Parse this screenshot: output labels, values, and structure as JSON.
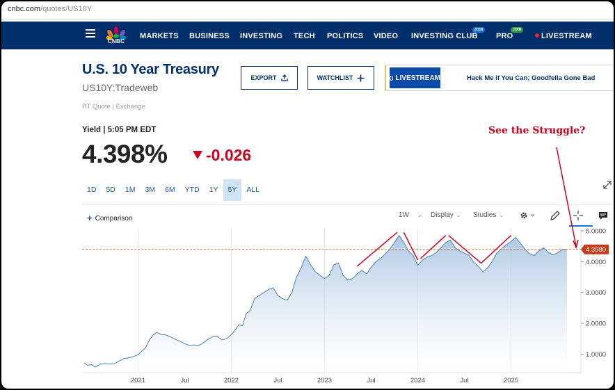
{
  "browser": {
    "url_host": "cnbc.com",
    "url_path": "/quotes/US10Y"
  },
  "nav": {
    "logo_text": "CNBC",
    "items": [
      "MARKETS",
      "BUSINESS",
      "INVESTING",
      "TECH",
      "POLITICS",
      "VIDEO",
      "INVESTING CLUB",
      "PRO",
      "LIVESTREAM"
    ],
    "join_badge": "JOIN",
    "colors": {
      "background": "#002f6c",
      "club_badge": "#1a73d8",
      "pro_badge": "#2a9d3a",
      "live_dot": "#e22222"
    }
  },
  "quote": {
    "title": "U.S. 10 Year Treasury",
    "symbol": "US10Y:Tradeweb",
    "source": "RT Quote | Exchange",
    "yield_label": "Yield | 5:05 PM EDT",
    "price": "4.398%",
    "change": "-0.026",
    "change_direction": "down",
    "change_color": "#d0021b"
  },
  "actions": {
    "export_label": "EXPORT",
    "watchlist_label": "WATCHLIST"
  },
  "livestream": {
    "button_label": "LIVESTREAM",
    "show_title": "Hack Me if You Can; Goodfella Gone Bad"
  },
  "ranges": [
    "1D",
    "5D",
    "1M",
    "3M",
    "6M",
    "YTD",
    "1Y",
    "5Y",
    "ALL"
  ],
  "active_range": "5Y",
  "toolbar": {
    "comparison_label": "Comparison",
    "interval": "1W",
    "display_label": "Display",
    "studies_label": "Studies"
  },
  "annotation": {
    "text": "See the Struggle?",
    "color": "#d0021b"
  },
  "chart_data": {
    "type": "area",
    "title": "",
    "xlabel": "",
    "ylabel": "",
    "x_ticks": [
      "2021",
      "Jul",
      "2022",
      "Jul",
      "2023",
      "Jul",
      "2024",
      "Jul",
      "2025"
    ],
    "x_tick_values": [
      2021.0,
      2021.5,
      2022.0,
      2022.5,
      2023.0,
      2023.5,
      2024.0,
      2024.5,
      2025.0
    ],
    "y_ticks": [
      "5.0000",
      "4.0000",
      "3.0000",
      "2.0000",
      "1.0000"
    ],
    "y_tick_values": [
      5,
      4,
      3,
      2,
      1
    ],
    "ylim": [
      0.4,
      5.0
    ],
    "xlim": [
      2020.4,
      2025.75
    ],
    "last_value_label": "4.3980",
    "last_value": 4.398,
    "reference_line": 4.398,
    "colors": {
      "line": "#4a7fb0",
      "fill_top": "#a9c6e2",
      "reference": "#e0703a",
      "last_badge": "#c43d1a"
    },
    "grid": true,
    "series": [
      {
        "x": [
          2020.42,
          2020.46,
          2020.5,
          2020.54,
          2020.6,
          2020.65,
          2020.7,
          2020.75,
          2020.8,
          2020.85,
          2020.9,
          2020.95,
          2021.0,
          2021.04,
          2021.08,
          2021.12,
          2021.16,
          2021.2,
          2021.25,
          2021.3,
          2021.35,
          2021.4,
          2021.45,
          2021.5,
          2021.55,
          2021.6,
          2021.65,
          2021.7,
          2021.75,
          2021.8,
          2021.85,
          2021.9,
          2021.95,
          2022.0,
          2022.04,
          2022.08,
          2022.12,
          2022.16,
          2022.2,
          2022.25,
          2022.3,
          2022.35,
          2022.4,
          2022.45,
          2022.5,
          2022.55,
          2022.6,
          2022.65,
          2022.7,
          2022.75,
          2022.8,
          2022.85,
          2022.9,
          2022.95,
          2023.0,
          2023.05,
          2023.1,
          2023.15,
          2023.2,
          2023.25,
          2023.3,
          2023.35,
          2023.4,
          2023.45,
          2023.5,
          2023.55,
          2023.6,
          2023.65,
          2023.7,
          2023.75,
          2023.8,
          2023.85,
          2023.9,
          2023.95,
          2024.0,
          2024.05,
          2024.1,
          2024.15,
          2024.2,
          2024.25,
          2024.3,
          2024.35,
          2024.4,
          2024.45,
          2024.5,
          2024.55,
          2024.6,
          2024.65,
          2024.7,
          2024.75,
          2024.8,
          2024.85,
          2024.9,
          2024.95,
          2025.0,
          2025.05,
          2025.1,
          2025.15,
          2025.2,
          2025.25,
          2025.3,
          2025.35,
          2025.4,
          2025.45,
          2025.5,
          2025.55,
          2025.6
        ],
        "values": [
          0.72,
          0.64,
          0.66,
          0.58,
          0.68,
          0.69,
          0.68,
          0.7,
          0.78,
          0.86,
          0.88,
          0.92,
          0.98,
          1.1,
          1.2,
          1.45,
          1.62,
          1.7,
          1.64,
          1.62,
          1.56,
          1.48,
          1.42,
          1.34,
          1.28,
          1.3,
          1.28,
          1.36,
          1.48,
          1.56,
          1.58,
          1.46,
          1.5,
          1.63,
          1.78,
          1.95,
          1.92,
          2.32,
          2.4,
          2.8,
          2.9,
          3.0,
          3.1,
          3.15,
          2.9,
          2.8,
          2.75,
          3.0,
          3.5,
          3.8,
          4.18,
          3.9,
          3.68,
          3.56,
          3.45,
          3.55,
          3.9,
          3.95,
          3.55,
          3.4,
          3.45,
          3.6,
          3.72,
          3.6,
          3.82,
          4.0,
          4.1,
          4.25,
          4.4,
          4.62,
          4.85,
          4.62,
          4.35,
          4.2,
          3.88,
          4.05,
          4.15,
          4.2,
          4.3,
          4.45,
          4.62,
          4.7,
          4.45,
          4.35,
          4.28,
          4.2,
          3.98,
          3.85,
          3.66,
          3.8,
          4.02,
          4.28,
          4.42,
          4.55,
          4.65,
          4.79,
          4.6,
          4.4,
          4.25,
          4.2,
          4.35,
          4.45,
          4.3,
          4.22,
          4.28,
          4.4,
          4.398
        ]
      }
    ]
  }
}
